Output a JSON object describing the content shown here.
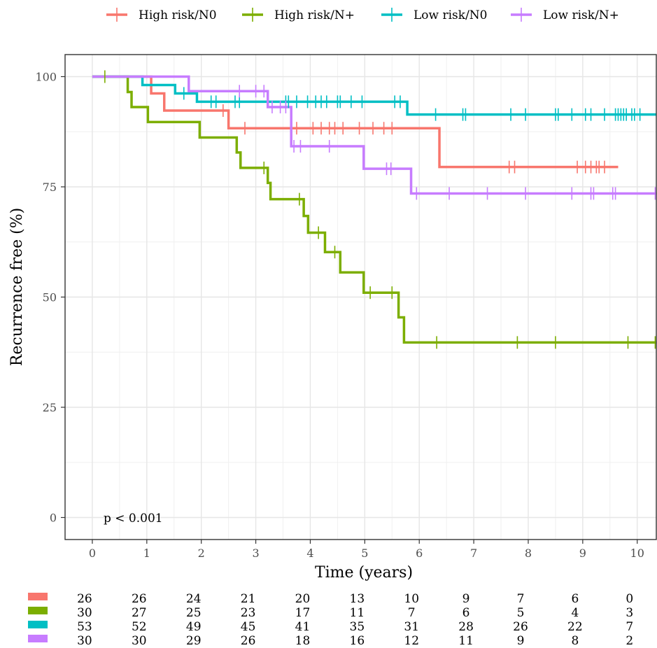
{
  "chart_data": {
    "type": "line",
    "subtype": "kaplan-meier",
    "xlabel": "Time (years)",
    "ylabel": "Recurrence free (%)",
    "xlim": [
      -0.5,
      10.35
    ],
    "ylim": [
      -5,
      105
    ],
    "x_ticks": [
      "0",
      "1",
      "2",
      "3",
      "4",
      "5",
      "6",
      "7",
      "8",
      "9",
      "10"
    ],
    "y_ticks": [
      "0",
      "25",
      "50",
      "75",
      "100"
    ],
    "grid": true,
    "legend_position": "top",
    "annotation": "p < 0.001",
    "series": [
      {
        "name": "High risk/N0",
        "color": "#F8766D",
        "steps": [
          [
            0,
            100
          ],
          [
            1.08,
            96.2
          ],
          [
            1.32,
            92.3
          ],
          [
            2.5,
            88.3
          ],
          [
            6.37,
            79.5
          ],
          [
            9.65,
            79.5
          ]
        ],
        "censors": [
          2.4,
          2.8,
          3.75,
          4.05,
          4.2,
          4.35,
          4.45,
          4.6,
          4.9,
          5.15,
          5.35,
          5.5,
          7.65,
          7.75,
          8.9,
          9.05,
          9.15,
          9.25,
          9.3,
          9.4
        ]
      },
      {
        "name": "High risk/N+",
        "color": "#7CAE00",
        "steps": [
          [
            0,
            100
          ],
          [
            0.65,
            96.5
          ],
          [
            0.72,
            93.1
          ],
          [
            1.02,
            89.7
          ],
          [
            1.97,
            86.2
          ],
          [
            2.65,
            82.8
          ],
          [
            2.72,
            79.3
          ],
          [
            3.22,
            75.9
          ],
          [
            3.27,
            72.2
          ],
          [
            3.88,
            68.4
          ],
          [
            3.96,
            64.6
          ],
          [
            4.27,
            60.2
          ],
          [
            4.55,
            55.6
          ],
          [
            4.98,
            51.0
          ],
          [
            5.62,
            45.4
          ],
          [
            5.72,
            39.7
          ],
          [
            10.35,
            39.7
          ]
        ],
        "censors": [
          0.23,
          3.15,
          3.8,
          4.15,
          4.45,
          5.1,
          5.5,
          6.32,
          7.8,
          8.5,
          9.83,
          10.33
        ]
      },
      {
        "name": "Low risk/N0",
        "color": "#00BFC4",
        "steps": [
          [
            0,
            100
          ],
          [
            0.92,
            98.1
          ],
          [
            1.52,
            96.2
          ],
          [
            1.92,
            94.3
          ],
          [
            5.78,
            91.4
          ],
          [
            10.35,
            91.4
          ]
        ],
        "censors": [
          1.68,
          2.18,
          2.27,
          2.62,
          2.7,
          3.55,
          3.6,
          3.75,
          3.95,
          4.1,
          4.2,
          4.3,
          4.5,
          4.55,
          4.75,
          4.95,
          5.55,
          5.65,
          6.3,
          6.8,
          6.85,
          7.68,
          7.95,
          8.5,
          8.55,
          8.8,
          9.05,
          9.15,
          9.4,
          9.6,
          9.65,
          9.7,
          9.75,
          9.8,
          9.9,
          9.95,
          10.05
        ]
      },
      {
        "name": "Low risk/N+",
        "color": "#C77CFF",
        "steps": [
          [
            0,
            100
          ],
          [
            1.77,
            96.7
          ],
          [
            3.22,
            93.1
          ],
          [
            3.65,
            84.2
          ],
          [
            4.98,
            79.1
          ],
          [
            5.85,
            73.5
          ],
          [
            10.35,
            73.5
          ]
        ],
        "censors": [
          2.7,
          3.0,
          3.15,
          3.3,
          3.45,
          3.55,
          3.7,
          3.82,
          4.35,
          5.4,
          5.48,
          5.95,
          6.55,
          7.25,
          7.95,
          8.8,
          9.15,
          9.2,
          9.55,
          9.6,
          10.33
        ]
      }
    ]
  },
  "risk_table": {
    "rows": [
      {
        "color": "#F8766D",
        "values": [
          "26",
          "26",
          "24",
          "21",
          "20",
          "13",
          "10",
          "9",
          "7",
          "6",
          "0"
        ]
      },
      {
        "color": "#7CAE00",
        "values": [
          "30",
          "27",
          "25",
          "23",
          "17",
          "11",
          "7",
          "6",
          "5",
          "4",
          "3"
        ]
      },
      {
        "color": "#00BFC4",
        "values": [
          "53",
          "52",
          "49",
          "45",
          "41",
          "35",
          "31",
          "28",
          "26",
          "22",
          "7"
        ]
      },
      {
        "color": "#C77CFF",
        "values": [
          "30",
          "30",
          "29",
          "26",
          "18",
          "16",
          "12",
          "11",
          "9",
          "8",
          "2"
        ]
      }
    ]
  }
}
